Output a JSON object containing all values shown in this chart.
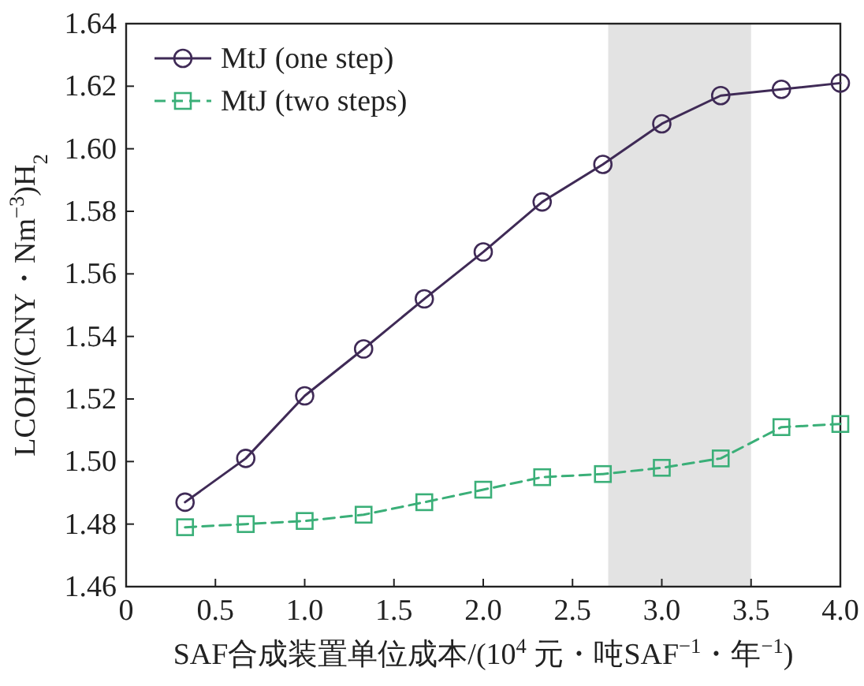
{
  "chart_data": {
    "type": "line",
    "ylabel": "LCOH/(CNY・Nm$^{−3}$)H$_{2}$",
    "xlabel": "SAF合成装置单位成本/(10$^{4}$ 元・吨SAF$^{−1}$・年$^{−1}$)",
    "x": [
      0.33,
      0.67,
      1.0,
      1.33,
      1.67,
      2.0,
      2.33,
      2.67,
      3.0,
      3.33,
      3.67,
      4.0
    ],
    "series": [
      {
        "name": "MtJ (one step)",
        "color": "#3f2a56",
        "marker": "circle",
        "line_style": "solid",
        "values": [
          1.487,
          1.501,
          1.521,
          1.536,
          1.552,
          1.567,
          1.583,
          1.595,
          1.608,
          1.617,
          1.619,
          1.621
        ]
      },
      {
        "name": "MtJ (two steps)",
        "color": "#3aaf78",
        "marker": "square",
        "line_style": "dashed",
        "values": [
          1.479,
          1.48,
          1.481,
          1.483,
          1.487,
          1.491,
          1.495,
          1.496,
          1.498,
          1.501,
          1.511,
          1.512
        ]
      }
    ],
    "bands": [
      {
        "axis": "x",
        "from": 2.7,
        "to": 3.5,
        "color": "#e3e3e3"
      }
    ],
    "xlim": [
      0,
      4.0
    ],
    "xticks": [
      0,
      0.5,
      {
        "value": 1.0,
        "label": "1.0"
      },
      1.5,
      {
        "value": 2.0,
        "label": "2.0"
      },
      2.5,
      {
        "value": 3.0,
        "label": "3.0"
      },
      3.5,
      {
        "value": 4.0,
        "label": "4.0"
      }
    ],
    "ylim": [
      1.46,
      1.64
    ],
    "yticks": [
      1.46,
      1.48,
      {
        "value": 1.5,
        "label": "1.50"
      },
      1.52,
      1.54,
      1.56,
      1.58,
      {
        "value": 1.6,
        "label": "1.60"
      },
      1.62,
      1.64
    ],
    "grid": false,
    "legend": "top left"
  }
}
